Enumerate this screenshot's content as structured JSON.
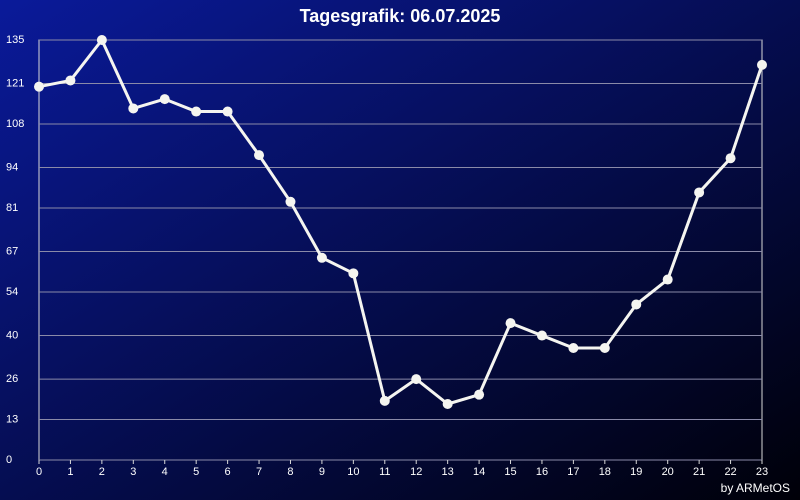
{
  "chart_data": {
    "type": "line",
    "title": "Tagesgrafik: 06.07.2025",
    "footer": "by ARMetOS",
    "x": [
      0,
      1,
      2,
      3,
      4,
      5,
      6,
      7,
      8,
      9,
      10,
      11,
      12,
      13,
      14,
      15,
      16,
      17,
      18,
      19,
      20,
      21,
      22,
      23
    ],
    "xlim": [
      0,
      23
    ],
    "xticks": [
      0,
      1,
      2,
      3,
      4,
      5,
      6,
      7,
      8,
      9,
      10,
      11,
      12,
      13,
      14,
      15,
      16,
      17,
      18,
      19,
      20,
      21,
      22,
      23
    ],
    "ylim": [
      0,
      135
    ],
    "yticks": [
      0,
      13,
      26,
      40,
      54,
      67,
      81,
      94,
      108,
      121,
      135
    ],
    "grid": true,
    "color": "#f5f5f0",
    "values": [
      120,
      122,
      135,
      113,
      116,
      112,
      112,
      98,
      83,
      65,
      60,
      19,
      26,
      18,
      21,
      44,
      40,
      36,
      36,
      50,
      58,
      86,
      97,
      127
    ]
  }
}
